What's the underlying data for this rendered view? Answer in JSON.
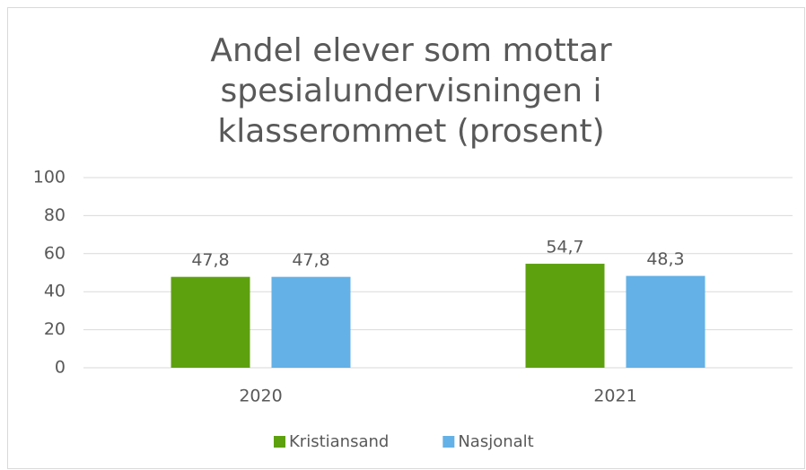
{
  "chart_data": {
    "type": "bar",
    "title": [
      "Andel elever som mottar",
      "spesialundervisningen i",
      "klasserommet (prosent)"
    ],
    "categories": [
      "2020",
      "2021"
    ],
    "series": [
      {
        "name": "Kristiansand",
        "color": "#5ea10f",
        "values": [
          47.8,
          54.7
        ],
        "value_labels": [
          "47,8",
          "54,7"
        ]
      },
      {
        "name": "Nasjonalt",
        "color": "#63b1e6",
        "values": [
          47.8,
          48.3
        ],
        "value_labels": [
          "47,8",
          "48,3"
        ]
      }
    ],
    "ylim": [
      0,
      100
    ],
    "yticks": [
      0,
      20,
      40,
      60,
      80,
      100
    ],
    "grid": true,
    "legend": "bottom"
  }
}
